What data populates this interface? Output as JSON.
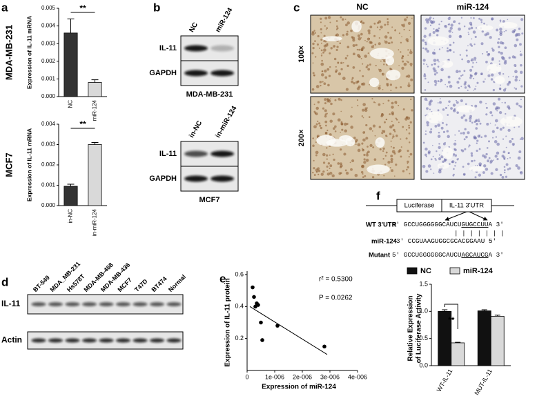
{
  "panel_labels": [
    "a",
    "b",
    "c",
    "d",
    "e",
    "f"
  ],
  "chart_data": [
    {
      "type": "bar",
      "row_label": "MDA-MB-231",
      "ylabel": "Expression of IL-11 mRNA",
      "categories": [
        "NC",
        "miR-124"
      ],
      "values": [
        0.0036,
        0.0008
      ],
      "errors": [
        0.0008,
        0.00015
      ],
      "colors": [
        "#333333",
        "#d9d9d9"
      ],
      "ylim": [
        0,
        0.005
      ],
      "yticks": [
        {
          "value": 0,
          "label": "0.000"
        },
        {
          "value": 0.001,
          "label": "0.001"
        },
        {
          "value": 0.002,
          "label": "0.002"
        },
        {
          "value": 0.003,
          "label": "0.003"
        },
        {
          "value": 0.004,
          "label": "0.004"
        },
        {
          "value": 0.005,
          "label": "0.005"
        }
      ],
      "significance": "**"
    },
    {
      "type": "bar",
      "row_label": "MCF7",
      "ylabel": "Expression of IL-11 mRNA",
      "categories": [
        "in-NC",
        "in-miR-124"
      ],
      "values": [
        0.00095,
        0.003
      ],
      "errors": [
        0.0001,
        0.0001
      ],
      "colors": [
        "#333333",
        "#d9d9d9"
      ],
      "ylim": [
        0,
        0.004
      ],
      "yticks": [
        {
          "value": 0,
          "label": "0.000"
        },
        {
          "value": 0.001,
          "label": "0.001"
        },
        {
          "value": 0.002,
          "label": "0.002"
        },
        {
          "value": 0.003,
          "label": "0.003"
        },
        {
          "value": 0.004,
          "label": "0.004"
        }
      ],
      "significance": "**"
    },
    {
      "type": "scatter",
      "xlabel": "Expression of miR-124",
      "ylabel": "Expression of IL-11 protein",
      "x": [
        2e-07,
        2.5e-07,
        3e-07,
        3.5e-07,
        4e-07,
        5e-07,
        5.5e-07,
        1.1e-06,
        2.8e-06
      ],
      "values": [
        0.52,
        0.46,
        0.4,
        0.42,
        0.41,
        0.3,
        0.19,
        0.28,
        0.15
      ],
      "color": "#000000",
      "trend_line": {
        "x": [
          1e-07,
          2.9e-06
        ],
        "y": [
          0.4,
          0.1
        ]
      },
      "annotations": [
        "r² = 0.5300",
        "P = 0.0262"
      ],
      "xlim": [
        0,
        4e-06
      ],
      "xticks": [
        0,
        {
          "value": 1e-06,
          "label": "1e-006"
        },
        {
          "value": 2e-06,
          "label": "2e-006"
        },
        {
          "value": 3e-06,
          "label": "3e-006"
        },
        {
          "value": 4e-06,
          "label": "4e-006"
        }
      ],
      "ylim": [
        0,
        0.6
      ],
      "yticks": [
        0.2,
        0.4,
        0.6
      ]
    },
    {
      "type": "grouped_bar",
      "ylabel": [
        "Relative Expression",
        "of Luciferase Activity"
      ],
      "categories": [
        "WT-IL-11",
        "MUT-IL-11"
      ],
      "series": [
        {
          "name": "NC",
          "color": "#111111",
          "values": [
            1.0,
            1.01
          ],
          "errors": [
            0.03,
            0.02
          ]
        },
        {
          "name": "miR-124",
          "color": "#d9d9d9",
          "values": [
            0.42,
            0.91
          ],
          "errors": [
            0.01,
            0.02
          ]
        }
      ],
      "ylim": [
        0,
        1.5
      ],
      "yticks": [
        {
          "value": 0,
          "label": "0.0"
        },
        0.5,
        {
          "value": 1,
          "label": "1.0"
        },
        1.5
      ],
      "significance": "**"
    }
  ],
  "blots_b": [
    {
      "lanes": [
        "NC",
        "miR-124"
      ],
      "rows": [
        "IL-11",
        "GAPDH"
      ],
      "cell_line": "MDA-MB-231"
    },
    {
      "lanes": [
        "in-NC",
        "in-miR-124"
      ],
      "rows": [
        "IL-11",
        "GAPDH"
      ],
      "cell_line": "MCF7"
    }
  ],
  "ihc_c": {
    "columns": [
      "NC",
      "miR-124"
    ],
    "rows": [
      "100×",
      "200×"
    ]
  },
  "blot_d": {
    "lanes": [
      "BT-549",
      "MDA_MB-231",
      "Hs578T",
      "MDA-MB-468",
      "MDA-MB-436",
      "MCF7",
      "T47D",
      "BT474",
      "Normal"
    ],
    "rows": [
      "IL-11",
      "Actin"
    ]
  },
  "construct_f": {
    "boxes": [
      "Luciferase",
      "IL-11 3'UTR"
    ],
    "sequences": [
      {
        "label": "WT 3'UTR",
        "seq": [
          "5' GCCUGGGGGGCAUCU",
          "GUGCCUU",
          "A 3'"
        ]
      },
      {
        "label": "miR-124",
        "seq": [
          "3' CCGUAAGUGGCGCACGGAAU 5'"
        ]
      },
      {
        "label": "Mutant",
        "seq": [
          "5' GCCUGGGGGGCAUCU",
          "AGCAUCG",
          "A 3'"
        ]
      }
    ],
    "pairing": "| | | | | | |"
  }
}
